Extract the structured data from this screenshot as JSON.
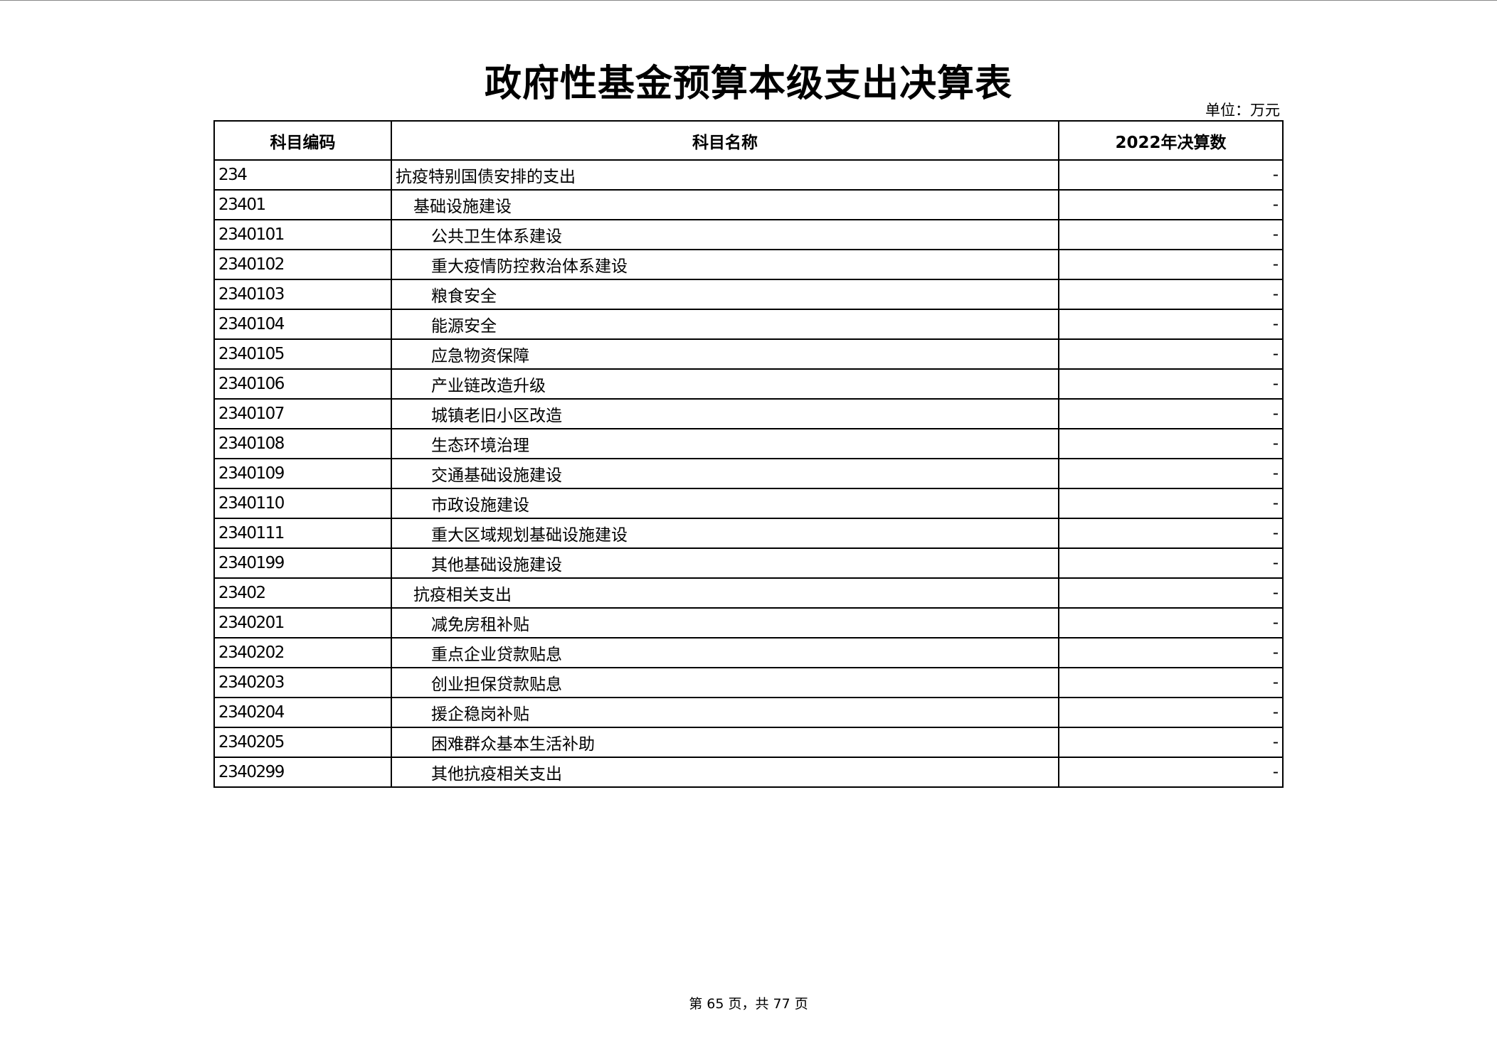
{
  "title": "政府性基金预算本级支出决算表",
  "unit": "单位：万元",
  "table": {
    "headers": [
      "科目编码",
      "科目名称",
      "2022年决算数"
    ],
    "rows": [
      {
        "code": "234",
        "name": "抗疫特别国债安排的支出",
        "value": "-",
        "level": 0
      },
      {
        "code": "23401",
        "name": "基础设施建设",
        "value": "-",
        "level": 1
      },
      {
        "code": "2340101",
        "name": "公共卫生体系建设",
        "value": "-",
        "level": 2
      },
      {
        "code": "2340102",
        "name": "重大疫情防控救治体系建设",
        "value": "-",
        "level": 2
      },
      {
        "code": "2340103",
        "name": "粮食安全",
        "value": "-",
        "level": 2
      },
      {
        "code": "2340104",
        "name": "能源安全",
        "value": "-",
        "level": 2
      },
      {
        "code": "2340105",
        "name": "应急物资保障",
        "value": "-",
        "level": 2
      },
      {
        "code": "2340106",
        "name": "产业链改造升级",
        "value": "-",
        "level": 2
      },
      {
        "code": "2340107",
        "name": "城镇老旧小区改造",
        "value": "-",
        "level": 2
      },
      {
        "code": "2340108",
        "name": "生态环境治理",
        "value": "-",
        "level": 2
      },
      {
        "code": "2340109",
        "name": "交通基础设施建设",
        "value": "-",
        "level": 2
      },
      {
        "code": "2340110",
        "name": "市政设施建设",
        "value": "-",
        "level": 2
      },
      {
        "code": "2340111",
        "name": "重大区域规划基础设施建设",
        "value": "-",
        "level": 2
      },
      {
        "code": "2340199",
        "name": "其他基础设施建设",
        "value": "-",
        "level": 2
      },
      {
        "code": "23402",
        "name": "抗疫相关支出",
        "value": "-",
        "level": 1
      },
      {
        "code": "2340201",
        "name": "减免房租补贴",
        "value": "-",
        "level": 2
      },
      {
        "code": "2340202",
        "name": "重点企业贷款贴息",
        "value": "-",
        "level": 2
      },
      {
        "code": "2340203",
        "name": "创业担保贷款贴息",
        "value": "-",
        "level": 2
      },
      {
        "code": "2340204",
        "name": "援企稳岗补贴",
        "value": "-",
        "level": 2
      },
      {
        "code": "2340205",
        "name": "困难群众基本生活补助",
        "value": "-",
        "level": 2
      },
      {
        "code": "2340299",
        "name": "其他抗疫相关支出",
        "value": "-",
        "level": 2
      }
    ]
  },
  "footer": "第 65 页，共 77 页"
}
